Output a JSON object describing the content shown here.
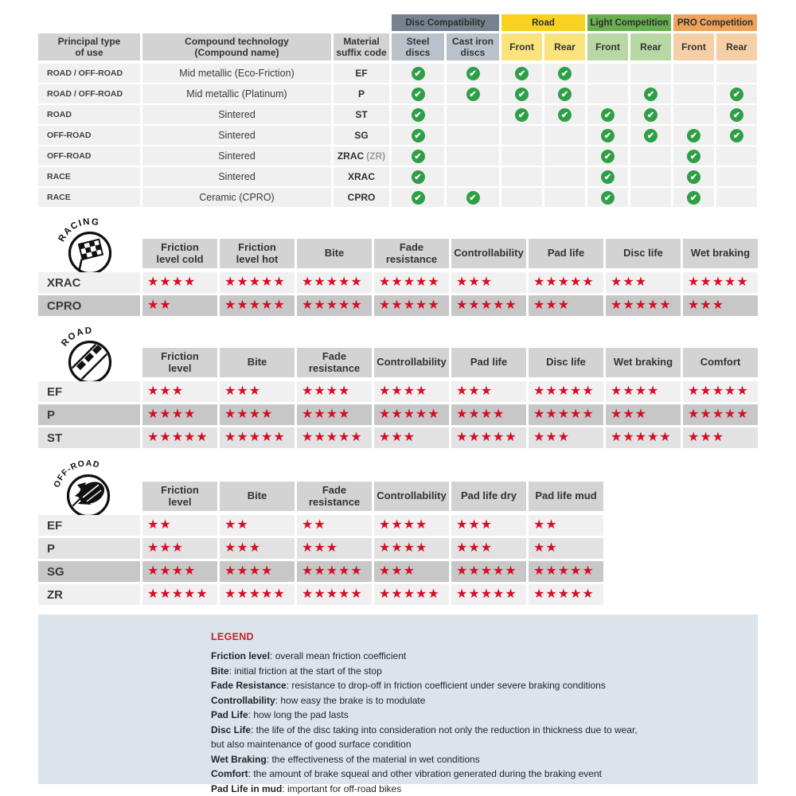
{
  "colors": {
    "check_green": "#2f9f47",
    "star_red": "#d50f26",
    "legend_bg": "#dbe4ea",
    "legend_title_red": "#c32430",
    "header_gray": "#d3d3d3",
    "row_light": "#f0f0f0",
    "row_mid": "#e2e2e2",
    "row_dark": "#c7c7c7"
  },
  "chart_data": [
    {
      "type": "table",
      "title": "Compound compatibility matrix",
      "column_groups": [
        {
          "label": "Disc Compatibility",
          "span": 2,
          "header_color": "#76828f",
          "cell_color": "#b9c1ca"
        },
        {
          "label": "Road",
          "span": 2,
          "header_color": "#f8d21e",
          "cell_color": "#fae37d"
        },
        {
          "label": "Light Competition",
          "span": 2,
          "header_color": "#68af4e",
          "cell_color": "#b7d8a2"
        },
        {
          "label": "PRO Competition",
          "span": 2,
          "header_color": "#efa25b",
          "cell_color": "#f7cfa6"
        }
      ],
      "columns": [
        "Principal type\nof use",
        "Compound technology\n(Compound name)",
        "Material\nsuffix code",
        "Steel\ndiscs",
        "Cast iron\ndiscs",
        "Front",
        "Rear",
        "Front",
        "Rear",
        "Front",
        "Rear"
      ],
      "rows": [
        {
          "use": "ROAD / OFF-ROAD",
          "tech": "Mid metallic (Eco-Friction)",
          "code": "EF",
          "code_note": "",
          "checks": [
            1,
            1,
            1,
            1,
            0,
            0,
            0,
            0
          ]
        },
        {
          "use": "ROAD / OFF-ROAD",
          "tech": "Mid metallic (Platinum)",
          "code": "P",
          "code_note": "",
          "checks": [
            1,
            1,
            1,
            1,
            0,
            1,
            0,
            1
          ]
        },
        {
          "use": "ROAD",
          "tech": "Sintered",
          "code": "ST",
          "code_note": "",
          "checks": [
            1,
            0,
            1,
            1,
            1,
            1,
            0,
            1
          ]
        },
        {
          "use": "OFF-ROAD",
          "tech": "Sintered",
          "code": "SG",
          "code_note": "",
          "checks": [
            1,
            0,
            0,
            0,
            1,
            1,
            1,
            1
          ]
        },
        {
          "use": "OFF-ROAD",
          "tech": "Sintered",
          "code": "ZRAC",
          "code_note": "(ZR)",
          "checks": [
            1,
            0,
            0,
            0,
            1,
            0,
            1,
            0
          ]
        },
        {
          "use": "RACE",
          "tech": "Sintered",
          "code": "XRAC",
          "code_note": "",
          "checks": [
            1,
            0,
            0,
            0,
            1,
            0,
            1,
            0
          ]
        },
        {
          "use": "RACE",
          "tech": "Ceramic (CPRO)",
          "code": "CPRO",
          "code_note": "",
          "checks": [
            1,
            1,
            0,
            0,
            1,
            0,
            1,
            0
          ]
        }
      ]
    },
    {
      "type": "table",
      "title": "Racing compound star ratings (out of 5)",
      "icon_label": "RACING",
      "columns": [
        "Friction\nlevel cold",
        "Friction\nlevel hot",
        "Bite",
        "Fade\nresistance",
        "Controllability",
        "Pad life",
        "Disc life",
        "Wet braking"
      ],
      "rows": [
        {
          "label": "XRAC",
          "shade": "light",
          "stars": [
            4,
            5,
            5,
            5,
            3,
            5,
            3,
            5
          ]
        },
        {
          "label": "CPRO",
          "shade": "dark",
          "stars": [
            2,
            5,
            5,
            5,
            5,
            3,
            5,
            3
          ]
        }
      ]
    },
    {
      "type": "table",
      "title": "Road compound star ratings (out of 5)",
      "icon_label": "ROAD",
      "columns": [
        "Friction\nlevel",
        "Bite",
        "Fade\nresistance",
        "Controllability",
        "Pad life",
        "Disc life",
        "Wet braking",
        "Comfort"
      ],
      "rows": [
        {
          "label": "EF",
          "shade": "light",
          "stars": [
            3,
            3,
            4,
            4,
            3,
            5,
            4,
            5
          ]
        },
        {
          "label": "P",
          "shade": "dark",
          "stars": [
            4,
            4,
            4,
            5,
            4,
            5,
            3,
            5
          ]
        },
        {
          "label": "ST",
          "shade": "mid",
          "stars": [
            5,
            5,
            5,
            3,
            5,
            3,
            5,
            3
          ]
        }
      ]
    },
    {
      "type": "table",
      "title": "Off-road compound star ratings (out of 5)",
      "icon_label": "OFF-ROAD",
      "columns": [
        "Friction\nlevel",
        "Bite",
        "Fade\nresistance",
        "Controllability",
        "Pad life dry",
        "Pad life mud"
      ],
      "rows": [
        {
          "label": "EF",
          "shade": "light",
          "stars": [
            2,
            2,
            2,
            4,
            3,
            2
          ]
        },
        {
          "label": "P",
          "shade": "mid",
          "stars": [
            3,
            3,
            3,
            4,
            3,
            2
          ]
        },
        {
          "label": "SG",
          "shade": "dark",
          "stars": [
            4,
            4,
            5,
            3,
            5,
            5
          ]
        },
        {
          "label": "ZR",
          "shade": "light",
          "stars": [
            5,
            5,
            5,
            5,
            5,
            5
          ]
        }
      ]
    }
  ],
  "legend": {
    "title": "LEGEND",
    "entries": [
      {
        "term": "Friction level",
        "desc": "overall mean friction coefficient"
      },
      {
        "term": "Bite",
        "desc": "initial friction at the start of the stop"
      },
      {
        "term": "Fade Resistance",
        "desc": "resistance to drop-off in friction coefficient under severe braking conditions"
      },
      {
        "term": "Controllability",
        "desc": "how easy the brake is to modulate"
      },
      {
        "term": "Pad Life",
        "desc": "how long the pad lasts"
      },
      {
        "term": "Disc Life",
        "desc": "the life of the disc taking into consideration not only the reduction in thickness due to wear,"
      },
      {
        "term": "",
        "desc": "but also maintenance of good surface condition"
      },
      {
        "term": "Wet Braking",
        "desc": "the effectiveness of the material in wet conditions"
      },
      {
        "term": "Comfort",
        "desc": "the amount of brake squeal and other vibration generated during the braking event"
      },
      {
        "term": "Pad Life in mud",
        "desc": "important for off-road bikes"
      }
    ]
  }
}
